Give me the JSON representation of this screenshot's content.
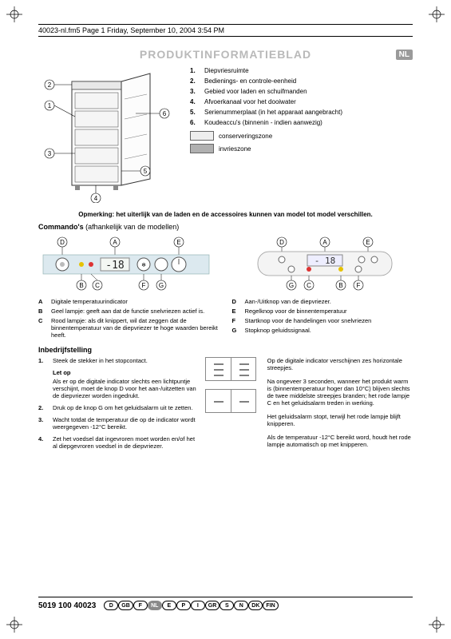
{
  "header": {
    "file_line": "40023-nl.fm5  Page 1  Friday, September 10, 2004  3:54 PM"
  },
  "title": {
    "text": "PRODUKTINFORMATIEBLAD",
    "lang_badge": "NL"
  },
  "parts_legend": {
    "items": [
      {
        "n": "1.",
        "t": "Diepvriesruimte"
      },
      {
        "n": "2.",
        "t": "Bedienings- en controle-eenheid"
      },
      {
        "n": "3.",
        "t": "Gebied voor laden en schuifmanden"
      },
      {
        "n": "4.",
        "t": "Afvoerkanaal voor het dooiwater"
      },
      {
        "n": "5.",
        "t": "Serienummerplaat (in het apparaat aangebracht)"
      },
      {
        "n": "6.",
        "t": "Koudeaccu's (binnenin - indien aanwezig)"
      }
    ],
    "zones": [
      {
        "swatch": "#eeeeee",
        "label": "conserveringszone"
      },
      {
        "swatch": "#b0b0b0",
        "label": "invrieszone"
      }
    ]
  },
  "note": {
    "bold": "Opmerking: het uiterlijk van de laden en de accessoires kunnen van model tot model verschillen."
  },
  "commands": {
    "heading": "Commando's",
    "sub": " (afhankelijk van de modellen)",
    "left": [
      {
        "k": "A",
        "t": "Digitale temperatuurindicator"
      },
      {
        "k": "B",
        "t": "Geel lampje: geeft aan dat de functie snelvriezen actief is."
      },
      {
        "k": "C",
        "t": "Rood lampje: als dit knippert, wil dat zeggen dat de binnentemperatuur van de diepvriezer te hoge waarden bereikt heeft."
      }
    ],
    "right": [
      {
        "k": "D",
        "t": "Aan-/Uitknop van de diepvriezer."
      },
      {
        "k": "E",
        "t": "Regelknop voor de binnentemperatuur"
      },
      {
        "k": "F",
        "t": "Startknop voor de handelingen voor snelvriezen"
      },
      {
        "k": "G",
        "t": "Stopknop geluidssignaal."
      }
    ]
  },
  "panel1": {
    "display": "-18",
    "labels_top": [
      "D",
      "A",
      "E"
    ],
    "labels_bottom": [
      "F",
      "G"
    ],
    "led_colors": {
      "B": "#e6c200",
      "C": "#d33"
    },
    "bg": "#dce9ef"
  },
  "panel2": {
    "display": "- 18",
    "labels_top": [
      "D",
      "A",
      "E"
    ],
    "labels_bottom": [
      "G",
      "C",
      "B",
      "F"
    ],
    "bg": "#f4f4f4"
  },
  "inbed": {
    "heading": "Inbedrijfstelling",
    "steps": [
      {
        "n": "1.",
        "t": "Steek de stekker in het stopcontact."
      },
      {
        "n": "2.",
        "t": "Druk op de knop G om het geluidsalarm uit te zetten."
      },
      {
        "n": "3.",
        "t": "Wacht totdat de temperatuur die op de indicator wordt weergegeven -12°C bereikt."
      },
      {
        "n": "4.",
        "t": "Zet het voedsel dat ingevroren moet worden en/of het al diepgevroren voedsel in de diepvriezer."
      }
    ],
    "letop_h": "Let op",
    "letop_body": "Als er op de digitale indicator slechts een lichtpuntje verschijnt, moet de knop D voor het aan-/uitzetten van de diepvriezer worden ingedrukt.",
    "right_paras": [
      "Op de digitale indicator verschijnen zes horizontale streepjes.",
      "Na ongeveer 3 seconden, wanneer het produkt warm is (binnentemperatuur hoger dan 10°C) blijven slechts de twee middelste streepjes branden; het rode lampje C en het geluidsalarm treden in werking.",
      "Het geluidsalarm stopt, terwijl het rode lampje blijft knipperen.",
      "Als de temperatuur -12°C bereikt word, houdt het rode lampje automatisch op met knipperen."
    ]
  },
  "footer": {
    "partno": "5019 100 40023",
    "langs": [
      "D",
      "GB",
      "F",
      "NL",
      "E",
      "P",
      "I",
      "GR",
      "S",
      "N",
      "DK",
      "FIN"
    ],
    "active": "NL"
  },
  "diagram_callouts": [
    "1",
    "2",
    "3",
    "4",
    "5",
    "6"
  ]
}
